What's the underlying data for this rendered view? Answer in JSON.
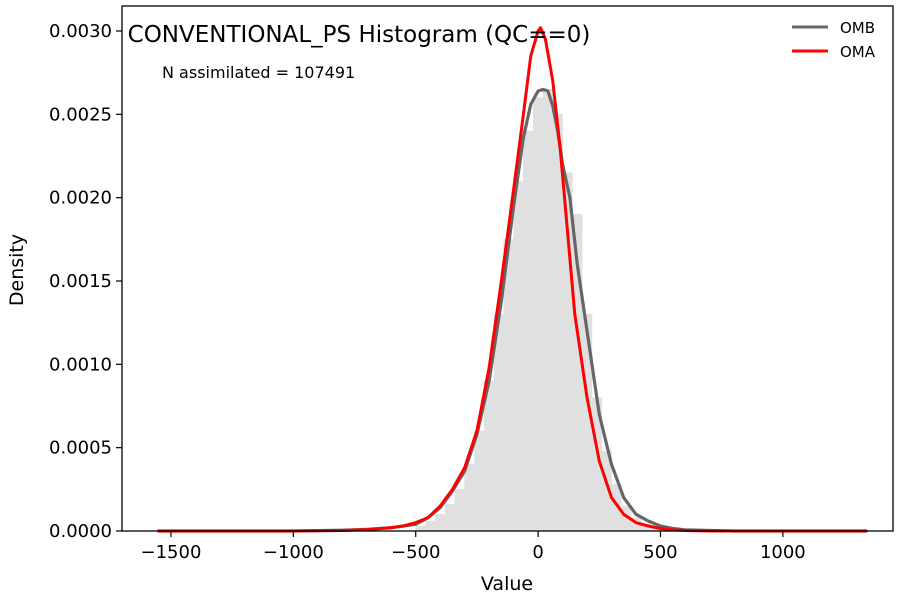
{
  "chart_data": {
    "type": "line",
    "title": "CONVENTIONAL_PS Histogram (QC==0)",
    "annotation": "N assimilated = 107491",
    "xlabel": "Value",
    "ylabel": "Density",
    "xlim": [
      -1700,
      1450
    ],
    "ylim": [
      0,
      0.00315
    ],
    "x_ticks": [
      -1500,
      -1000,
      -500,
      0,
      500,
      1000
    ],
    "x_tick_labels": [
      "−1500",
      "−1000",
      "−500",
      "0",
      "500",
      "1000"
    ],
    "y_ticks": [
      0,
      0.0005,
      0.001,
      0.0015,
      0.002,
      0.0025,
      0.003
    ],
    "y_tick_labels": [
      "0.0000",
      "0.0005",
      "0.0010",
      "0.0015",
      "0.0020",
      "0.0025",
      "0.0030"
    ],
    "legend_position": "top-right",
    "grid": false,
    "histogram": {
      "bin_width": 40,
      "color": "#e0e0e0",
      "bins": [
        [
          -500,
          3e-05
        ],
        [
          -460,
          6e-05
        ],
        [
          -420,
          0.0001
        ],
        [
          -380,
          0.00016
        ],
        [
          -340,
          0.00025
        ],
        [
          -300,
          0.0004
        ],
        [
          -260,
          0.0006
        ],
        [
          -220,
          0.0009
        ],
        [
          -180,
          0.0013
        ],
        [
          -140,
          0.00175
        ],
        [
          -100,
          0.0021
        ],
        [
          -60,
          0.0024
        ],
        [
          -20,
          0.0026
        ],
        [
          20,
          0.00265
        ],
        [
          60,
          0.0025
        ],
        [
          100,
          0.00215
        ],
        [
          140,
          0.0019
        ],
        [
          180,
          0.0013
        ],
        [
          220,
          0.0008
        ],
        [
          260,
          0.00048
        ],
        [
          300,
          0.00028
        ],
        [
          340,
          0.00015
        ],
        [
          380,
          8e-05
        ],
        [
          420,
          4e-05
        ],
        [
          460,
          2e-05
        ]
      ]
    },
    "series": [
      {
        "name": "OMB",
        "color": "#666666",
        "x": [
          -1550,
          -1400,
          -1200,
          -1000,
          -800,
          -700,
          -600,
          -500,
          -450,
          -400,
          -350,
          -300,
          -250,
          -200,
          -150,
          -100,
          -60,
          -30,
          0,
          20,
          40,
          60,
          80,
          100,
          130,
          160,
          200,
          250,
          300,
          350,
          400,
          450,
          500,
          550,
          600,
          700,
          800,
          1000,
          1200,
          1340
        ],
        "y": [
          0,
          0,
          0,
          0,
          5e-06,
          1e-05,
          2e-05,
          4e-05,
          8e-05,
          0.00014,
          0.00024,
          0.00036,
          0.00058,
          0.0009,
          0.00138,
          0.00195,
          0.00236,
          0.00256,
          0.00264,
          0.00265,
          0.00264,
          0.00255,
          0.0024,
          0.0022,
          0.002,
          0.0016,
          0.0012,
          0.0007,
          0.0004,
          0.0002,
          0.0001,
          6e-05,
          3e-05,
          1.5e-05,
          7e-06,
          3e-06,
          0,
          0,
          0,
          0
        ]
      },
      {
        "name": "OMA",
        "color": "#ff0000",
        "x": [
          -1550,
          -1400,
          -1200,
          -1000,
          -800,
          -700,
          -600,
          -550,
          -500,
          -450,
          -400,
          -350,
          -300,
          -250,
          -200,
          -150,
          -100,
          -60,
          -30,
          0,
          10,
          30,
          60,
          90,
          120,
          150,
          200,
          250,
          300,
          350,
          400,
          450,
          500,
          550,
          600,
          700,
          800,
          1000,
          1200,
          1340
        ],
        "y": [
          0,
          0,
          0,
          0,
          3e-06,
          8e-06,
          2e-05,
          3e-05,
          5e-05,
          8e-05,
          0.00015,
          0.00025,
          0.00038,
          0.0006,
          0.00098,
          0.0015,
          0.00205,
          0.0025,
          0.00285,
          0.003,
          0.00302,
          0.00295,
          0.0027,
          0.0023,
          0.0018,
          0.0013,
          0.0008,
          0.00042,
          0.0002,
          0.0001,
          5e-05,
          3e-05,
          1.5e-05,
          7e-06,
          3e-06,
          0,
          0,
          0,
          0,
          0
        ]
      }
    ]
  }
}
